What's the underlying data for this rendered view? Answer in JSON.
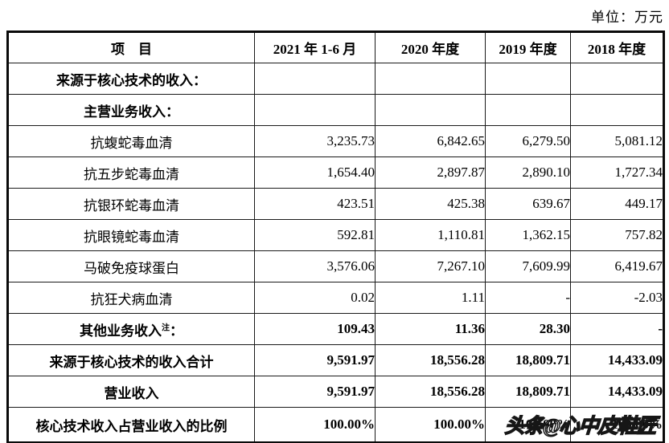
{
  "unit_label": "单位：万元",
  "watermark_text": "头条@心中皮鞋匠",
  "table": {
    "headers": [
      "项　目",
      "2021 年 1-6 月",
      "2020 年度",
      "2019 年度",
      "2018 年度"
    ],
    "rows": [
      {
        "label": "来源于核心技术的收入：",
        "bold": true,
        "values": [
          "",
          "",
          "",
          ""
        ]
      },
      {
        "label": "主营业务收入：",
        "bold": true,
        "values": [
          "",
          "",
          "",
          ""
        ]
      },
      {
        "label": "抗蝮蛇毒血清",
        "bold": false,
        "values": [
          "3,235.73",
          "6,842.65",
          "6,279.50",
          "5,081.12"
        ]
      },
      {
        "label": "抗五步蛇毒血清",
        "bold": false,
        "values": [
          "1,654.40",
          "2,897.87",
          "2,890.10",
          "1,727.34"
        ]
      },
      {
        "label": "抗银环蛇毒血清",
        "bold": false,
        "values": [
          "423.51",
          "425.38",
          "639.67",
          "449.17"
        ]
      },
      {
        "label": "抗眼镜蛇毒血清",
        "bold": false,
        "values": [
          "592.81",
          "1,110.81",
          "1,362.15",
          "757.82"
        ]
      },
      {
        "label": "马破免疫球蛋白",
        "bold": false,
        "values": [
          "3,576.06",
          "7,267.10",
          "7,609.99",
          "6,419.67"
        ]
      },
      {
        "label": "抗狂犬病血清",
        "bold": false,
        "values": [
          "0.02",
          "1.11",
          "-",
          "-2.03"
        ]
      },
      {
        "label": "其他业务收入",
        "sup": "注",
        "suffix": "：",
        "bold": true,
        "values": [
          "109.43",
          "11.36",
          "28.30",
          "-"
        ]
      },
      {
        "label": "来源于核心技术的收入合计",
        "bold": true,
        "values": [
          "9,591.97",
          "18,556.28",
          "18,809.71",
          "14,433.09"
        ]
      },
      {
        "label": "营业收入",
        "bold": true,
        "values": [
          "9,591.97",
          "18,556.28",
          "18,809.71",
          "14,433.09"
        ]
      },
      {
        "label": "核心技术收入占营业收入的比例",
        "bold": true,
        "values": [
          "100.00%",
          "100.00%",
          "100.00%",
          "100.00%"
        ]
      }
    ]
  }
}
